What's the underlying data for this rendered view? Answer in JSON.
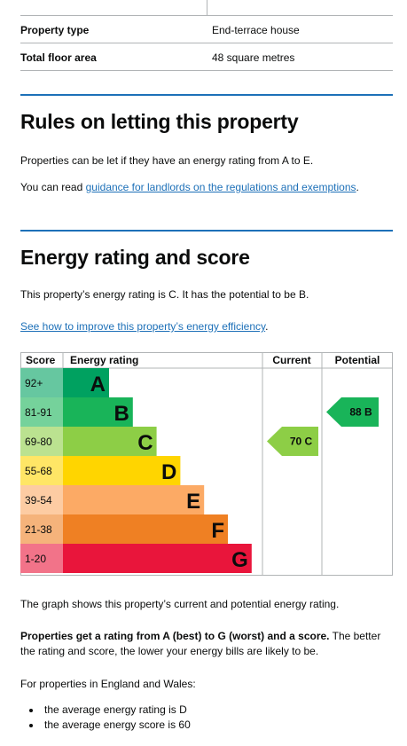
{
  "summary": {
    "rows": [
      {
        "label": "Property type",
        "value": "End-terrace house"
      },
      {
        "label": "Total floor area",
        "value": "48 square metres"
      }
    ]
  },
  "letting": {
    "heading": "Rules on letting this property",
    "text": "Properties can be let if they have an energy rating from A to E.",
    "read_prefix": "You can read ",
    "link": "guidance for landlords on the regulations and exemptions",
    "read_suffix": "."
  },
  "energy": {
    "heading": "Energy rating and score",
    "text": "This property’s energy rating is C. It has the potential to be B.",
    "improve_link": "See how to improve this property’s energy efficiency",
    "improve_suffix": ".",
    "graph_caption": "The graph shows this property’s current and potential energy rating.",
    "bold_lead": "Properties get a rating from A (best) to G (worst) and a score.",
    "bold_rest": " The better the rating and score, the lower your energy bills are likely to be.",
    "average_intro": "For properties in England and Wales:",
    "averages": [
      "the average energy rating is D",
      "the average energy score is 60"
    ]
  },
  "chart_data": {
    "type": "bar",
    "headers": {
      "score": "Score",
      "rating": "Energy rating",
      "current": "Current",
      "potential": "Potential"
    },
    "bands": [
      {
        "score": "92+",
        "letter": "A",
        "color": "#00a160",
        "score_bg": "#66c7a0"
      },
      {
        "score": "81-91",
        "letter": "B",
        "color": "#19b459",
        "score_bg": "#75d29b"
      },
      {
        "score": "69-80",
        "letter": "C",
        "color": "#8dce46",
        "score_bg": "#bbe290"
      },
      {
        "score": "55-68",
        "letter": "D",
        "color": "#ffd500",
        "score_bg": "#ffe666"
      },
      {
        "score": "39-54",
        "letter": "E",
        "color": "#fcaa65",
        "score_bg": "#fdcca3"
      },
      {
        "score": "21-38",
        "letter": "F",
        "color": "#ef8023",
        "score_bg": "#f5b37b"
      },
      {
        "score": "1-20",
        "letter": "G",
        "color": "#e9153b",
        "score_bg": "#f27389"
      }
    ],
    "current": {
      "score": 70,
      "letter": "C",
      "label": "70 C"
    },
    "potential": {
      "score": 88,
      "letter": "B",
      "label": "88 B"
    }
  }
}
